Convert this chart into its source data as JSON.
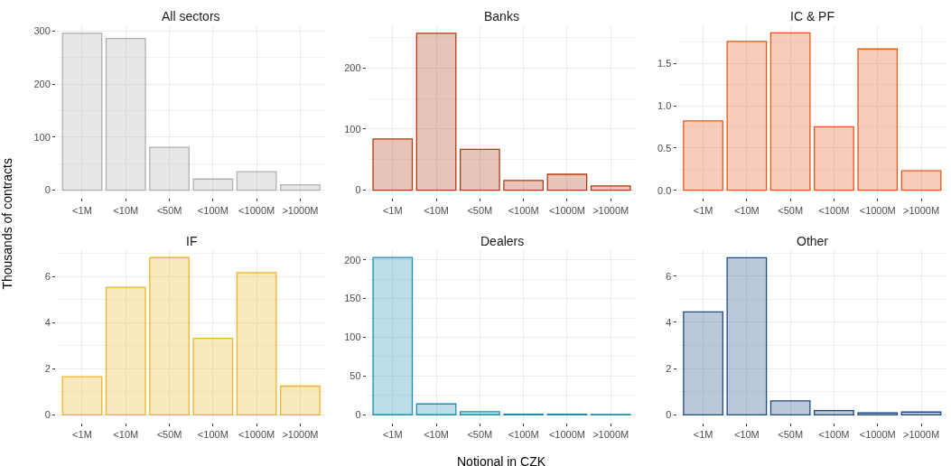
{
  "chart_data": [
    {
      "type": "bar",
      "title": "All sectors",
      "ylabel": "Thousands of contracts",
      "categories": [
        "<1M",
        "<10M",
        "<50M",
        "<100M",
        "<1000M",
        ">1000M"
      ],
      "values": [
        296,
        286,
        81,
        21,
        35,
        10
      ],
      "color": "#b0b0b0",
      "ylim": [
        -15,
        311
      ],
      "yticks": [
        0,
        100,
        200,
        300
      ],
      "grid": true
    },
    {
      "type": "bar",
      "title": "Banks",
      "categories": [
        "<1M",
        "<10M",
        "<50M",
        "<100M",
        "<1000M",
        ">1000M"
      ],
      "values": [
        84,
        257,
        67,
        16,
        26,
        7
      ],
      "color": "#b03a10",
      "ylim": [
        -13,
        270
      ],
      "yticks": [
        0,
        100,
        200
      ],
      "grid": true
    },
    {
      "type": "bar",
      "title": "IC & PF",
      "categories": [
        "<1M",
        "<10M",
        "<50M",
        "<100M",
        "<1000M",
        ">1000M"
      ],
      "values": [
        0.82,
        1.76,
        1.86,
        0.75,
        1.67,
        0.23
      ],
      "color": "#e8571a",
      "ylim": [
        -0.093,
        1.95
      ],
      "yticks": [
        {
          "value": 0,
          "label": "0.0"
        },
        {
          "value": 0.5,
          "label": "0.5"
        },
        {
          "value": 1,
          "label": "1.0"
        },
        {
          "value": 1.5,
          "label": "1.5"
        }
      ],
      "grid": true
    },
    {
      "type": "bar",
      "title": "IF",
      "categories": [
        "<1M",
        "<10M",
        "<50M",
        "<100M",
        "<1000M",
        ">1000M"
      ],
      "values": [
        1.66,
        5.54,
        6.83,
        3.32,
        6.18,
        1.25
      ],
      "color": "#f0b429",
      "ylim": [
        -0.34,
        7.17
      ],
      "yticks": [
        0,
        2,
        4,
        6
      ],
      "grid": true
    },
    {
      "type": "bar",
      "title": "Dealers",
      "xlabel": "Notional in CZK",
      "categories": [
        "<1M",
        "<10M",
        "<50M",
        "<100M",
        "<1000M",
        ">1000M"
      ],
      "values": [
        203,
        14,
        3.9,
        0.8,
        0.8,
        0.5
      ],
      "color": "#1b8fb0",
      "ylim": [
        -10.2,
        213
      ],
      "yticks": [
        0,
        50,
        100,
        150,
        200
      ],
      "grid": true
    },
    {
      "type": "bar",
      "title": "Other",
      "categories": [
        "<1M",
        "<10M",
        "<50M",
        "<100M",
        "<1000M",
        ">1000M"
      ],
      "values": [
        4.45,
        6.8,
        0.6,
        0.18,
        0.08,
        0.12
      ],
      "color": "#1c4a80",
      "ylim": [
        -0.34,
        7.14
      ],
      "yticks": [
        0,
        2,
        4,
        6
      ],
      "grid": true
    }
  ]
}
